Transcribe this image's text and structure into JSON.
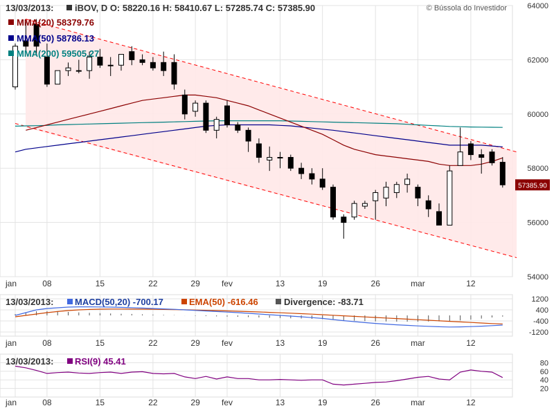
{
  "colors": {
    "up_fill": "#ffffff",
    "down_fill": "#000000",
    "mma20": "#8b0000",
    "mma50": "#00008b",
    "mma200": "#008080",
    "channel": "#ff0000",
    "channel_fill": "#ffe8e8",
    "grid": "#e3e3e3",
    "price_tag_bg": "#8b0000",
    "macd": "#4169e1",
    "ema": "#cc4400",
    "divergence": "#555555",
    "rsi": "#800080"
  },
  "header": {
    "date": "13/03/2013:",
    "quote": "iBOV, D O: 58220.16  H: 58410.67  L: 57285.74  C: 57385.90",
    "mma20": "MMA(20) 58379.76",
    "mma50": "MMA(50) 58786.13",
    "mma200": "MMA(200) 59505.27",
    "watermark": "© Bússola do Investidor"
  },
  "macd_header": {
    "date": "13/03/2013:",
    "macd": "MACD(50,20) -700.17",
    "ema": "EMA(50) -616.46",
    "divergence": "Divergence: -83.71"
  },
  "rsi_header": {
    "date": "13/03/2013:",
    "rsi": "RSI(9) 45.41"
  },
  "last_price_tag": "57385.90",
  "x_ticks": [
    {
      "label": "jan",
      "day": 0
    },
    {
      "label": "08",
      "day": 3
    },
    {
      "label": "15",
      "day": 8
    },
    {
      "label": "22",
      "day": 13
    },
    {
      "label": "29",
      "day": 17
    },
    {
      "label": "fev",
      "day": 20
    },
    {
      "label": "13",
      "day": 25
    },
    {
      "label": "19",
      "day": 29
    },
    {
      "label": "26",
      "day": 34
    },
    {
      "label": "mar",
      "day": 38
    },
    {
      "label": "12",
      "day": 43
    }
  ],
  "chart_data": [
    {
      "type": "candlestick",
      "title": "iBOV, D",
      "ylim": [
        54000,
        64000
      ],
      "y_ticks": [
        54000,
        56000,
        58000,
        60000,
        62000,
        64000
      ],
      "candles": [
        {
          "o": 61000,
          "h": 62600,
          "l": 60900,
          "c": 62500
        },
        {
          "o": 62700,
          "h": 63400,
          "l": 62300,
          "c": 62500
        },
        {
          "o": 63300,
          "h": 63500,
          "l": 62200,
          "c": 62500
        },
        {
          "o": 62100,
          "h": 62600,
          "l": 61000,
          "c": 61100
        },
        {
          "o": 61100,
          "h": 61600,
          "l": 61100,
          "c": 61600
        },
        {
          "o": 61600,
          "h": 61900,
          "l": 61400,
          "c": 61700
        },
        {
          "o": 61600,
          "h": 62000,
          "l": 61500,
          "c": 61600
        },
        {
          "o": 61600,
          "h": 62300,
          "l": 61300,
          "c": 62100
        },
        {
          "o": 62100,
          "h": 62400,
          "l": 61700,
          "c": 61800
        },
        {
          "o": 61800,
          "h": 62100,
          "l": 61400,
          "c": 61800
        },
        {
          "o": 61800,
          "h": 62200,
          "l": 61600,
          "c": 62200
        },
        {
          "o": 62300,
          "h": 62500,
          "l": 61800,
          "c": 62000
        },
        {
          "o": 62000,
          "h": 62200,
          "l": 61800,
          "c": 61900
        },
        {
          "o": 61900,
          "h": 62100,
          "l": 61600,
          "c": 61700
        },
        {
          "o": 61900,
          "h": 62300,
          "l": 61400,
          "c": 61600
        },
        {
          "o": 61900,
          "h": 62200,
          "l": 60900,
          "c": 61100
        },
        {
          "o": 60700,
          "h": 60900,
          "l": 59800,
          "c": 60000
        },
        {
          "o": 60100,
          "h": 60500,
          "l": 59900,
          "c": 60400
        },
        {
          "o": 60400,
          "h": 60500,
          "l": 59300,
          "c": 59400
        },
        {
          "o": 59400,
          "h": 59900,
          "l": 59100,
          "c": 59800
        },
        {
          "o": 60300,
          "h": 60500,
          "l": 59500,
          "c": 59600
        },
        {
          "o": 59600,
          "h": 59700,
          "l": 59300,
          "c": 59400
        },
        {
          "o": 59400,
          "h": 59500,
          "l": 58600,
          "c": 59000
        },
        {
          "o": 58900,
          "h": 59100,
          "l": 58200,
          "c": 58400
        },
        {
          "o": 58300,
          "h": 58800,
          "l": 57900,
          "c": 58400
        },
        {
          "o": 58400,
          "h": 58600,
          "l": 58000,
          "c": 58400
        },
        {
          "o": 58400,
          "h": 58500,
          "l": 57900,
          "c": 58000
        },
        {
          "o": 58000,
          "h": 58200,
          "l": 57600,
          "c": 57800
        },
        {
          "o": 57800,
          "h": 58000,
          "l": 57400,
          "c": 57600
        },
        {
          "o": 57600,
          "h": 58000,
          "l": 57200,
          "c": 57300
        },
        {
          "o": 57300,
          "h": 57400,
          "l": 56100,
          "c": 56200
        },
        {
          "o": 56200,
          "h": 56300,
          "l": 55400,
          "c": 56000
        },
        {
          "o": 56200,
          "h": 56800,
          "l": 56100,
          "c": 56700
        },
        {
          "o": 56600,
          "h": 56800,
          "l": 56500,
          "c": 56700
        },
        {
          "o": 56800,
          "h": 57200,
          "l": 56100,
          "c": 57100
        },
        {
          "o": 56900,
          "h": 57500,
          "l": 56600,
          "c": 57300
        },
        {
          "o": 57100,
          "h": 57500,
          "l": 56900,
          "c": 57400
        },
        {
          "o": 57400,
          "h": 57800,
          "l": 57100,
          "c": 57600
        },
        {
          "o": 57300,
          "h": 57400,
          "l": 56600,
          "c": 56900
        },
        {
          "o": 56800,
          "h": 57000,
          "l": 56200,
          "c": 56500
        },
        {
          "o": 56400,
          "h": 56700,
          "l": 55900,
          "c": 55900
        },
        {
          "o": 55900,
          "h": 58100,
          "l": 55900,
          "c": 57900
        },
        {
          "o": 58100,
          "h": 59500,
          "l": 58100,
          "c": 58600
        },
        {
          "o": 58900,
          "h": 59000,
          "l": 58300,
          "c": 58500
        },
        {
          "o": 58500,
          "h": 58700,
          "l": 57800,
          "c": 58400
        },
        {
          "o": 58600,
          "h": 58700,
          "l": 58100,
          "c": 58200
        },
        {
          "o": 58220.16,
          "h": 58410.67,
          "l": 57285.74,
          "c": 57385.9
        }
      ],
      "mma20": [
        null,
        59400,
        59500,
        59600,
        59700,
        59800,
        59900,
        60000,
        60100,
        60200,
        60300,
        60400,
        60500,
        60550,
        60600,
        60650,
        60700,
        60700,
        60650,
        60600,
        60500,
        60400,
        60300,
        60150,
        60000,
        59850,
        59700,
        59550,
        59400,
        59250,
        59050,
        58850,
        58700,
        58600,
        58500,
        58450,
        58400,
        58350,
        58300,
        58250,
        58150,
        58100,
        58100,
        58100,
        58150,
        58250,
        58379.76
      ],
      "mma50": [
        58600,
        58700,
        58750,
        58800,
        58850,
        58900,
        58950,
        59000,
        59050,
        59100,
        59150,
        59200,
        59250,
        59300,
        59350,
        59400,
        59450,
        59500,
        59550,
        59580,
        59600,
        59600,
        59600,
        59600,
        59600,
        59580,
        59560,
        59520,
        59480,
        59440,
        59400,
        59350,
        59300,
        59250,
        59200,
        59150,
        59100,
        59050,
        59000,
        58950,
        58900,
        58850,
        58850,
        58850,
        58850,
        58820,
        58786.13
      ],
      "mma200": [
        59550,
        59560,
        59570,
        59580,
        59600,
        59610,
        59620,
        59630,
        59640,
        59650,
        59660,
        59670,
        59680,
        59690,
        59700,
        59710,
        59720,
        59730,
        59740,
        59750,
        59750,
        59750,
        59750,
        59750,
        59750,
        59750,
        59740,
        59730,
        59720,
        59710,
        59700,
        59690,
        59680,
        59670,
        59660,
        59650,
        59640,
        59620,
        59600,
        59580,
        59560,
        59540,
        59530,
        59520,
        59515,
        59510,
        59505.27
      ],
      "channel_upper": {
        "from": [
          0,
          63500
        ],
        "to": [
          47,
          58600
        ]
      },
      "channel_lower": {
        "from": [
          0,
          59500
        ],
        "to": [
          47,
          54700
        ]
      }
    },
    {
      "type": "macd",
      "y_ticks": [
        1200,
        400,
        -400,
        -1200
      ],
      "ylim": [
        -1500,
        1500
      ],
      "macd": [
        0,
        200,
        400,
        500,
        550,
        600,
        620,
        620,
        610,
        600,
        580,
        560,
        530,
        500,
        470,
        440,
        400,
        360,
        320,
        280,
        240,
        200,
        150,
        100,
        50,
        0,
        -50,
        -100,
        -160,
        -220,
        -300,
        -380,
        -450,
        -520,
        -580,
        -630,
        -680,
        -720,
        -760,
        -790,
        -820,
        -840,
        -830,
        -810,
        -780,
        -740,
        -700.17
      ],
      "ema": [
        -100,
        0,
        100,
        200,
        280,
        350,
        400,
        430,
        450,
        460,
        460,
        455,
        450,
        440,
        430,
        420,
        405,
        390,
        370,
        350,
        325,
        300,
        275,
        250,
        220,
        190,
        160,
        125,
        90,
        50,
        10,
        -30,
        -70,
        -110,
        -150,
        -190,
        -230,
        -270,
        -310,
        -350,
        -390,
        -430,
        -470,
        -510,
        -550,
        -590,
        -616.46
      ],
      "divergence": [
        100,
        200,
        300,
        300,
        270,
        250,
        220,
        190,
        160,
        140,
        120,
        105,
        80,
        60,
        40,
        20,
        -5,
        -30,
        -50,
        -70,
        -85,
        -100,
        -125,
        -150,
        -170,
        -190,
        -210,
        -225,
        -250,
        -270,
        -310,
        -350,
        -380,
        -410,
        -430,
        -440,
        -450,
        -450,
        -450,
        -440,
        -430,
        -410,
        -360,
        -300,
        -230,
        -150,
        -83.71
      ]
    },
    {
      "type": "line",
      "title": "RSI(9)",
      "y_ticks": [
        80,
        60,
        40,
        20
      ],
      "ylim": [
        0,
        100
      ],
      "rsi": [
        72,
        68,
        62,
        55,
        57,
        58,
        56,
        55,
        57,
        58,
        55,
        58,
        59,
        55,
        54,
        55,
        47,
        43,
        48,
        42,
        47,
        43,
        43,
        40,
        40,
        41,
        40,
        39,
        40,
        40,
        30,
        28,
        30,
        32,
        34,
        35,
        38,
        42,
        46,
        48,
        42,
        40,
        58,
        63,
        60,
        58,
        45.41
      ]
    }
  ]
}
